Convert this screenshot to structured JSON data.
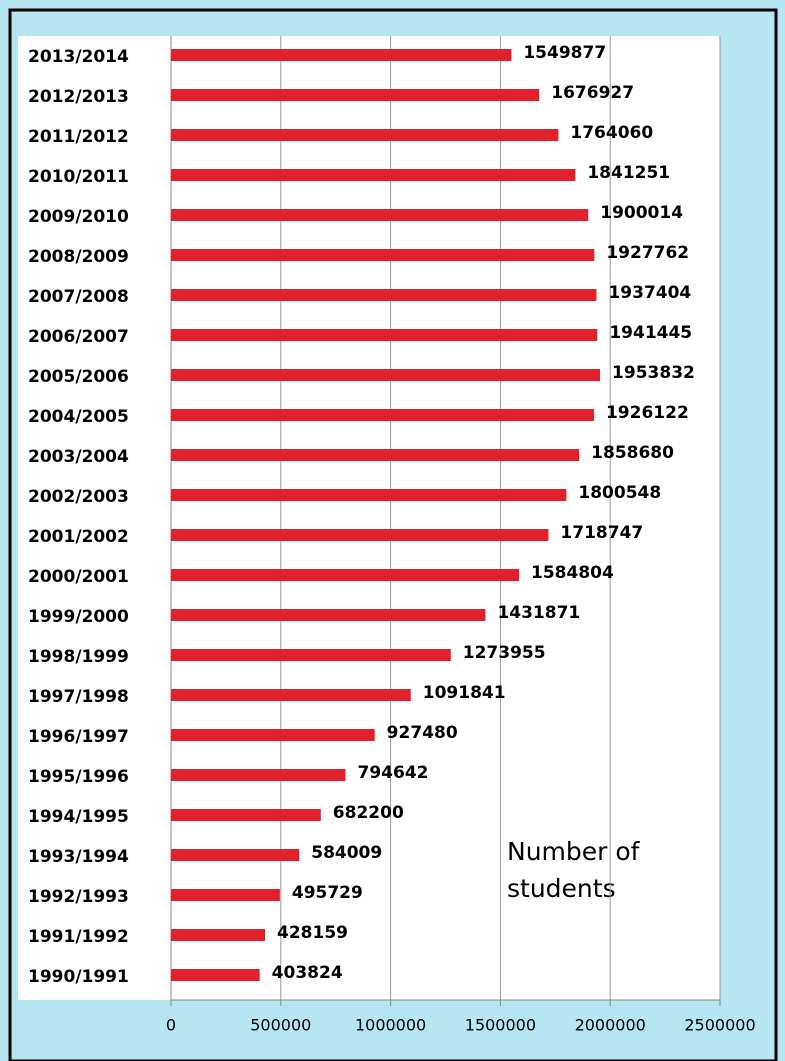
{
  "chart_data": {
    "type": "bar",
    "orientation": "horizontal",
    "categories": [
      "2013/2014",
      "2012/2013",
      "2011/2012",
      "2010/2011",
      "2009/2010",
      "2008/2009",
      "2007/2008",
      "2006/2007",
      "2005/2006",
      "2004/2005",
      "2003/2004",
      "2002/2003",
      "2001/2002",
      "2000/2001",
      "1999/2000",
      "1998/1999",
      "1997/1998",
      "1996/1997",
      "1995/1996",
      "1994/1995",
      "1993/1994",
      "1992/1993",
      "1991/1992",
      "1990/1991"
    ],
    "values": [
      1549877,
      1676927,
      1764060,
      1841251,
      1900014,
      1927762,
      1937404,
      1941445,
      1953832,
      1926122,
      1858680,
      1800548,
      1718747,
      1584804,
      1431871,
      1273955,
      1091841,
      927480,
      794642,
      682200,
      584009,
      495729,
      428159,
      403824
    ],
    "color": "#e0202a",
    "xlim": [
      0,
      2500000
    ],
    "xticks": [
      0,
      500000,
      1000000,
      1500000,
      2000000,
      2500000
    ],
    "grid": true,
    "annotation": [
      "Number of",
      "students"
    ]
  }
}
